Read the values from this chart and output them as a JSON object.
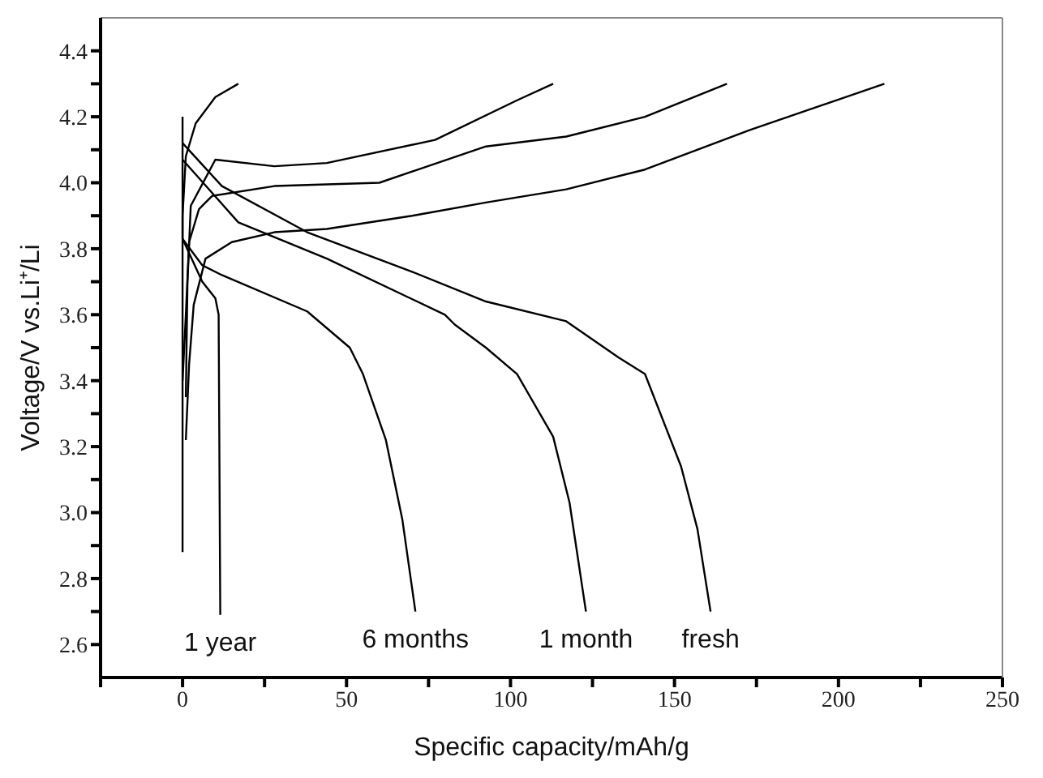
{
  "chart_data": {
    "type": "line",
    "xlabel": "Specific capacity/mAh/g",
    "ylabel": "Voltage/V vs.Li⁺/Li",
    "xlim": [
      -25,
      250
    ],
    "ylim": [
      2.5,
      4.5
    ],
    "xticks": [
      {
        "value": -25,
        "label": null
      },
      0,
      {
        "value": 25,
        "label": null
      },
      50,
      {
        "value": 75,
        "label": null
      },
      100,
      {
        "value": 125,
        "label": null
      },
      150,
      {
        "value": 175,
        "label": null
      },
      200,
      {
        "value": 225,
        "label": null
      },
      250
    ],
    "yticks": [
      {
        "value": 2.6,
        "label": "2.6"
      },
      {
        "value": 2.7,
        "label": null
      },
      {
        "value": 2.8,
        "label": "2.8"
      },
      {
        "value": 2.9,
        "label": null
      },
      {
        "value": 3.0,
        "label": "3.0"
      },
      {
        "value": 3.1,
        "label": null
      },
      {
        "value": 3.2,
        "label": "3.2"
      },
      {
        "value": 3.3,
        "label": null
      },
      {
        "value": 3.4,
        "label": "3.4"
      },
      {
        "value": 3.5,
        "label": null
      },
      {
        "value": 3.6,
        "label": "3.6"
      },
      {
        "value": 3.7,
        "label": null
      },
      {
        "value": 3.8,
        "label": "3.8"
      },
      {
        "value": 3.9,
        "label": null
      },
      {
        "value": 4.0,
        "label": "4.0"
      },
      {
        "value": 4.1,
        "label": null
      },
      {
        "value": 4.2,
        "label": "4.2"
      },
      {
        "value": 4.3,
        "label": null
      },
      {
        "value": 4.4,
        "label": "4.4"
      }
    ],
    "grid": false,
    "legend": false,
    "marker": "none",
    "line_style": "solid",
    "series": [
      {
        "color": "#000000",
        "x": [
          1,
          2,
          3.4,
          7,
          15,
          28,
          44,
          70,
          92.5,
          117,
          141,
          173,
          214
        ],
        "values": [
          3.22,
          3.45,
          3.63,
          3.77,
          3.82,
          3.85,
          3.86,
          3.9,
          3.94,
          3.98,
          4.04,
          4.16,
          4.3
        ]
      },
      {
        "color": "#000000",
        "x": [
          0,
          1,
          2,
          5,
          9,
          28,
          60,
          92.5,
          117,
          141,
          166
        ],
        "values": [
          3.4,
          3.6,
          3.82,
          3.92,
          3.96,
          3.99,
          4.0,
          4.11,
          4.14,
          4.2,
          4.3
        ]
      },
      {
        "color": "#000000",
        "x": [
          1,
          1.5,
          2.5,
          10,
          28,
          44,
          77,
          102,
          113
        ],
        "values": [
          3.35,
          3.7,
          3.93,
          4.07,
          4.05,
          4.06,
          4.13,
          4.25,
          4.3
        ]
      },
      {
        "color": "#000000",
        "x": [
          0,
          0,
          1,
          4,
          10,
          17
        ],
        "values": [
          2.88,
          3.9,
          4.08,
          4.18,
          4.26,
          4.3
        ]
      },
      {
        "name": "fresh",
        "color": "#000000",
        "x": [
          0,
          12,
          38,
          70,
          92.5,
          117,
          133,
          141,
          152,
          157,
          161
        ],
        "values": [
          4.12,
          3.99,
          3.85,
          3.73,
          3.64,
          3.58,
          3.47,
          3.42,
          3.14,
          2.95,
          2.7
        ]
      },
      {
        "name": "1 month",
        "color": "#000000",
        "x": [
          0,
          17,
          44,
          80,
          83,
          92.5,
          102,
          113,
          118,
          123
        ],
        "values": [
          4.07,
          3.88,
          3.77,
          3.6,
          3.57,
          3.5,
          3.42,
          3.23,
          3.03,
          2.7
        ]
      },
      {
        "name": "6 months",
        "color": "#000000",
        "x": [
          0,
          6,
          12,
          38,
          51,
          55,
          62,
          67,
          71
        ],
        "values": [
          3.83,
          3.75,
          3.72,
          3.61,
          3.5,
          3.42,
          3.22,
          2.98,
          2.7
        ]
      },
      {
        "name": "1 year",
        "color": "#000000",
        "x": [
          0,
          0,
          6,
          10,
          11,
          11.5
        ],
        "values": [
          4.2,
          3.83,
          3.7,
          3.65,
          3.6,
          2.69
        ]
      }
    ]
  }
}
